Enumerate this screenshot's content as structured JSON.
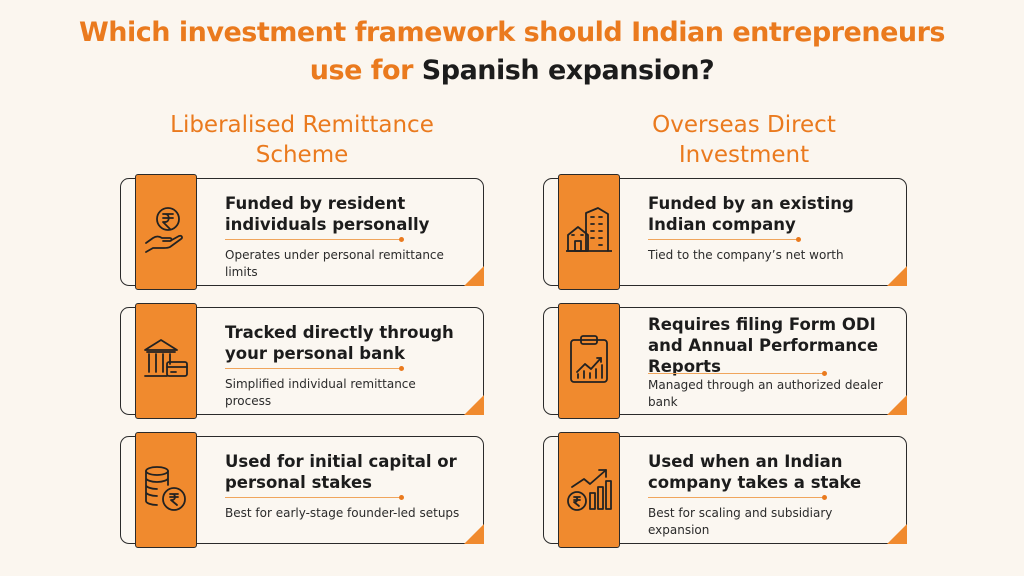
{
  "title": {
    "line1": "Which investment framework should Indian entrepreneurs",
    "line2_orange": "use for ",
    "line2_dark": "Spanish expansion?"
  },
  "columns": [
    {
      "heading": [
        "Liberalised Remittance",
        "Scheme"
      ],
      "cards": [
        {
          "icon": "rupee-hand-icon",
          "heading": "Funded by resident individuals personally",
          "body": "Operates under personal remittance limits"
        },
        {
          "icon": "bank-card-icon",
          "heading": "Tracked directly through your personal bank",
          "body": "Simplified individual remittance process"
        },
        {
          "icon": "rupee-coins-icon",
          "heading": "Used for initial capital or personal stakes",
          "body": "Best for early-stage founder-led setups"
        }
      ]
    },
    {
      "heading": [
        "Overseas Direct",
        "Investment"
      ],
      "cards": [
        {
          "icon": "buildings-icon",
          "heading": "Funded by an existing Indian company",
          "body": "Tied to the company’s net worth"
        },
        {
          "icon": "clipboard-chart-icon",
          "heading": "Requires filing Form ODI and Annual Performance Reports",
          "body": "Managed through an authorized dealer bank"
        },
        {
          "icon": "rupee-growth-icon",
          "heading": "Used when an Indian company takes a stake",
          "body": "Best for scaling and subsidiary expansion"
        }
      ]
    }
  ],
  "colors": {
    "accent": "#ea7a1e",
    "tab": "#f08a2e",
    "text": "#1c1c1c",
    "background": "#fbf6ef"
  }
}
